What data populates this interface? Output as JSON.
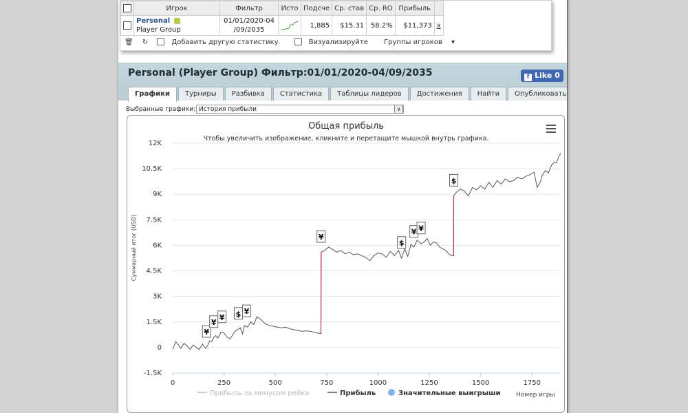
{
  "stats_table": {
    "headers": [
      "Игрок",
      "Фильтр",
      "Исто",
      "Подсче",
      "Ср. став",
      "Ср. RO",
      "Прибыль"
    ],
    "row": {
      "player_name": "Personal",
      "player_group": "Player Group",
      "filter_line1": "01/01/2020-04",
      "filter_line2": "/09/2035",
      "count": "1,885",
      "avg_stake": "$15.31",
      "avg_roi": "58.2%",
      "profit": "$11,373",
      "remove": "x"
    },
    "toolbar": {
      "add_stat": "Добавить другую статистику",
      "visualize": "Визуализируйте",
      "player_groups": "Группы игроков"
    }
  },
  "header": {
    "title": "Personal (Player Group) Фильтр:01/01/2020-04/09/2035",
    "like_label": "Like",
    "like_count": "0"
  },
  "tabs": [
    "Графики",
    "Турниры",
    "Разбивка",
    "Статистика",
    "Таблицы лидеров",
    "Достижения",
    "Найти",
    "Опубликовать"
  ],
  "selected_charts": {
    "label": "Выбранные графики:",
    "value": "История прибыли"
  },
  "chart_data": {
    "type": "line",
    "title": "Общая прибыль",
    "subtitle": "Чтобы увеличить изображение, кликните и перетащите мышкой внутрь графика.",
    "ylabel": "Суммарный итог (USD)",
    "xlabel": "Номер игры",
    "xlim": [
      0,
      1890
    ],
    "ylim": [
      -1500,
      12000
    ],
    "x_ticks": [
      0,
      250,
      500,
      750,
      1000,
      1250,
      1500,
      1750
    ],
    "x_tick_labels": [
      "0",
      "250",
      "500",
      "750",
      "1000",
      "1250",
      "1500",
      "1750"
    ],
    "y_ticks": [
      -1500,
      0,
      1500,
      3000,
      4500,
      6000,
      7500,
      9000,
      10500,
      12000
    ],
    "y_tick_labels": [
      "-1.5K",
      "0",
      "1.5K",
      "3K",
      "4.5K",
      "6K",
      "7.5K",
      "9K",
      "10.5K",
      "12K"
    ],
    "grid": true,
    "legend_position": "bottom",
    "legend": [
      "Прибыль за минусом рейка",
      "Прибыль",
      "Значительные выигрыши"
    ],
    "colors": {
      "profit": "#555555",
      "rake": "#bbbbbb",
      "big_win_marker": "#7cb5ec",
      "jump": "#c0392b"
    },
    "series": [
      {
        "name": "Прибыль",
        "x": [
          0,
          15,
          25,
          40,
          55,
          70,
          85,
          100,
          115,
          130,
          145,
          160,
          170,
          180,
          190,
          200,
          210,
          220,
          235,
          250,
          265,
          280,
          290,
          300,
          315,
          330,
          340,
          350,
          365,
          380,
          395,
          410,
          430,
          450,
          470,
          490,
          510,
          530,
          550,
          570,
          590,
          610,
          630,
          650,
          670,
          690,
          705,
          722,
          723,
          740,
          760,
          780,
          800,
          820,
          840,
          860,
          880,
          900,
          920,
          940,
          960,
          980,
          1000,
          1020,
          1040,
          1060,
          1080,
          1100,
          1115,
          1130,
          1145,
          1160,
          1175,
          1190,
          1210,
          1225,
          1240,
          1255,
          1270,
          1285,
          1300,
          1315,
          1330,
          1345,
          1360,
          1368,
          1369,
          1380,
          1400,
          1420,
          1440,
          1460,
          1480,
          1500,
          1520,
          1540,
          1560,
          1580,
          1600,
          1620,
          1640,
          1660,
          1680,
          1700,
          1720,
          1740,
          1760,
          1775,
          1790,
          1800,
          1815,
          1830,
          1845,
          1860,
          1870,
          1880,
          1890
        ],
        "y": [
          -100,
          350,
          200,
          -50,
          250,
          100,
          -100,
          150,
          0,
          -100,
          200,
          -50,
          100,
          400,
          350,
          600,
          700,
          550,
          900,
          850,
          600,
          500,
          700,
          900,
          1050,
          1150,
          800,
          1300,
          1200,
          1500,
          1350,
          1800,
          1650,
          1400,
          1300,
          1250,
          1200,
          1150,
          1200,
          1100,
          1050,
          1000,
          950,
          980,
          950,
          900,
          850,
          830,
          5600,
          5700,
          5900,
          5750,
          5600,
          5700,
          5500,
          5600,
          5450,
          5500,
          5400,
          5300,
          5100,
          5400,
          5550,
          5500,
          5300,
          5650,
          5400,
          5700,
          5250,
          5800,
          5350,
          6050,
          5900,
          6300,
          6100,
          6200,
          6400,
          6000,
          6200,
          6150,
          5900,
          5800,
          5700,
          5500,
          5400,
          5380,
          8900,
          9100,
          9300,
          9200,
          8900,
          9400,
          9250,
          9500,
          9300,
          9700,
          9400,
          9800,
          9600,
          9900,
          9750,
          9800,
          10000,
          9900,
          10050,
          10150,
          10300,
          9400,
          9700,
          10100,
          10400,
          10250,
          10700,
          10900,
          10850,
          11200,
          11400
        ]
      }
    ],
    "big_wins": [
      {
        "x": 165,
        "symbol": "¥"
      },
      {
        "x": 200,
        "symbol": "¥"
      },
      {
        "x": 240,
        "symbol": "¥"
      },
      {
        "x": 320,
        "symbol": "$"
      },
      {
        "x": 360,
        "symbol": "¥"
      },
      {
        "x": 723,
        "symbol": "¥"
      },
      {
        "x": 1115,
        "symbol": "$"
      },
      {
        "x": 1175,
        "symbol": "¥"
      },
      {
        "x": 1210,
        "symbol": "¥"
      },
      {
        "x": 1369,
        "symbol": "$"
      }
    ]
  }
}
